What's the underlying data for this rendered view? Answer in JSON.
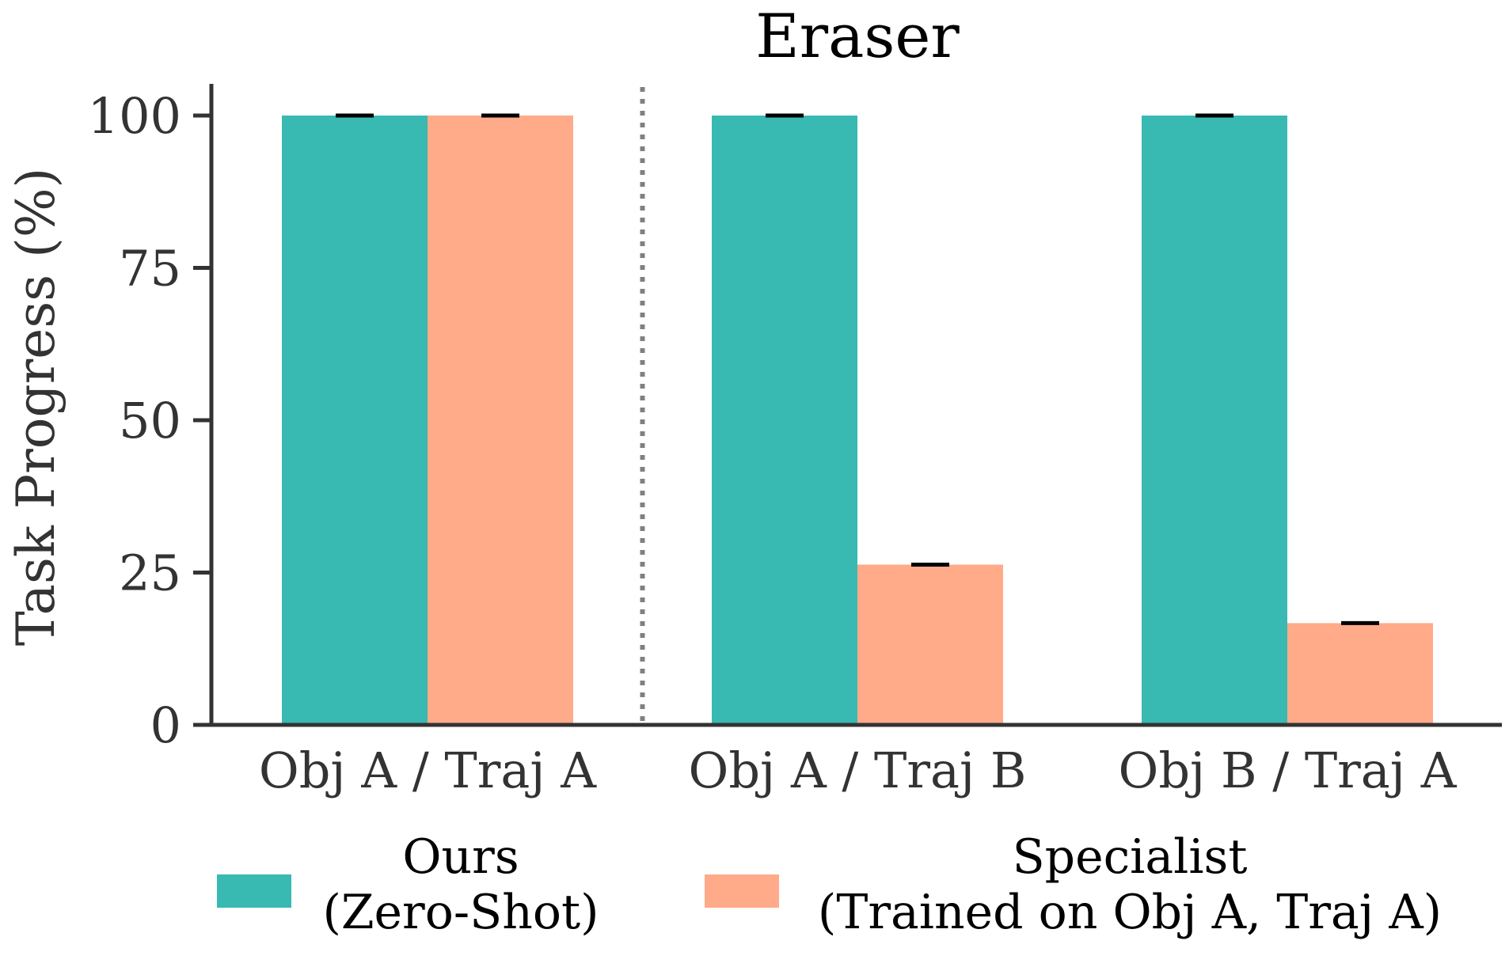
{
  "chart_data": {
    "type": "bar",
    "title": "Eraser",
    "xlabel": "",
    "ylabel": "Task Progress (%)",
    "ylim": [
      0,
      100
    ],
    "yticks": [
      0,
      25,
      50,
      75,
      100
    ],
    "categories": [
      "Obj A / Traj A",
      "Obj A / Traj B",
      "Obj B / Traj A"
    ],
    "series": [
      {
        "name": "Ours\n(Zero-Shot)",
        "name_lines": [
          "Ours",
          "(Zero-Shot)"
        ],
        "color": "#38b9b2",
        "values": [
          100,
          100,
          100
        ]
      },
      {
        "name": "Specialist\n(Trained on Obj A, Traj A)",
        "name_lines": [
          "Specialist",
          "(Trained on Obj A, Traj A)"
        ],
        "color": "#ffaa89",
        "values": [
          100,
          26.3,
          16.7
        ]
      }
    ],
    "grid": false,
    "legend_placement": "bottom",
    "separator_after_category": "Obj A / Traj A",
    "colors": {
      "axis": "#333333",
      "text": "#333333",
      "title": "#000000",
      "error_cap": "#000000",
      "separator": "#808080"
    }
  }
}
